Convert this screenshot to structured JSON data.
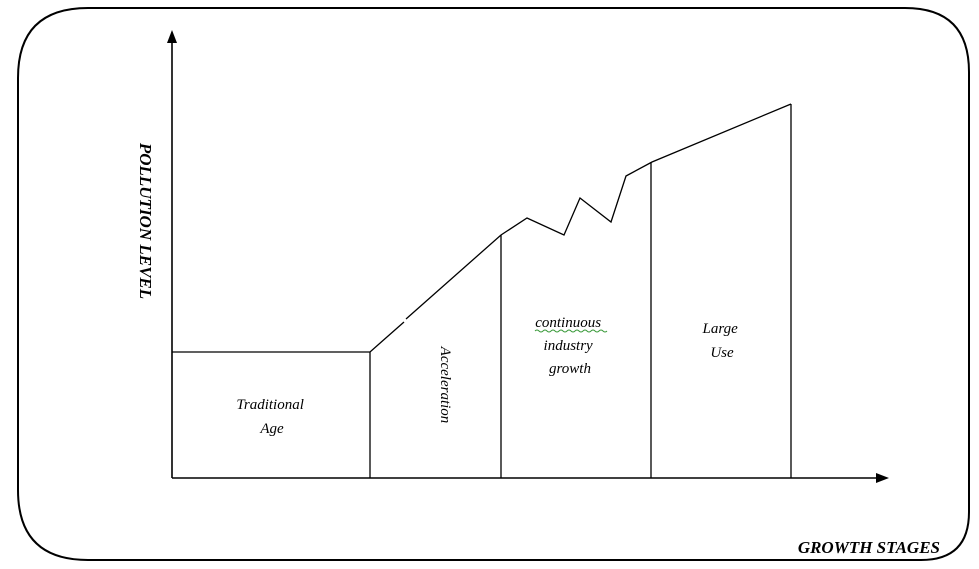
{
  "axes": {
    "y_label": "POLLUTION LEVEL",
    "x_label": "GROWTH STAGES"
  },
  "stages": [
    {
      "lines": [
        "Traditional",
        "Age"
      ]
    },
    {
      "lines": [
        "Acceleration"
      ]
    },
    {
      "lines": [
        "continuous",
        "industry",
        "growth"
      ]
    },
    {
      "lines": [
        "Large",
        "Use"
      ]
    }
  ],
  "colors": {
    "line": "#000000",
    "background": "#ffffff",
    "spellcheck_underline": "#3a9a3a"
  }
}
